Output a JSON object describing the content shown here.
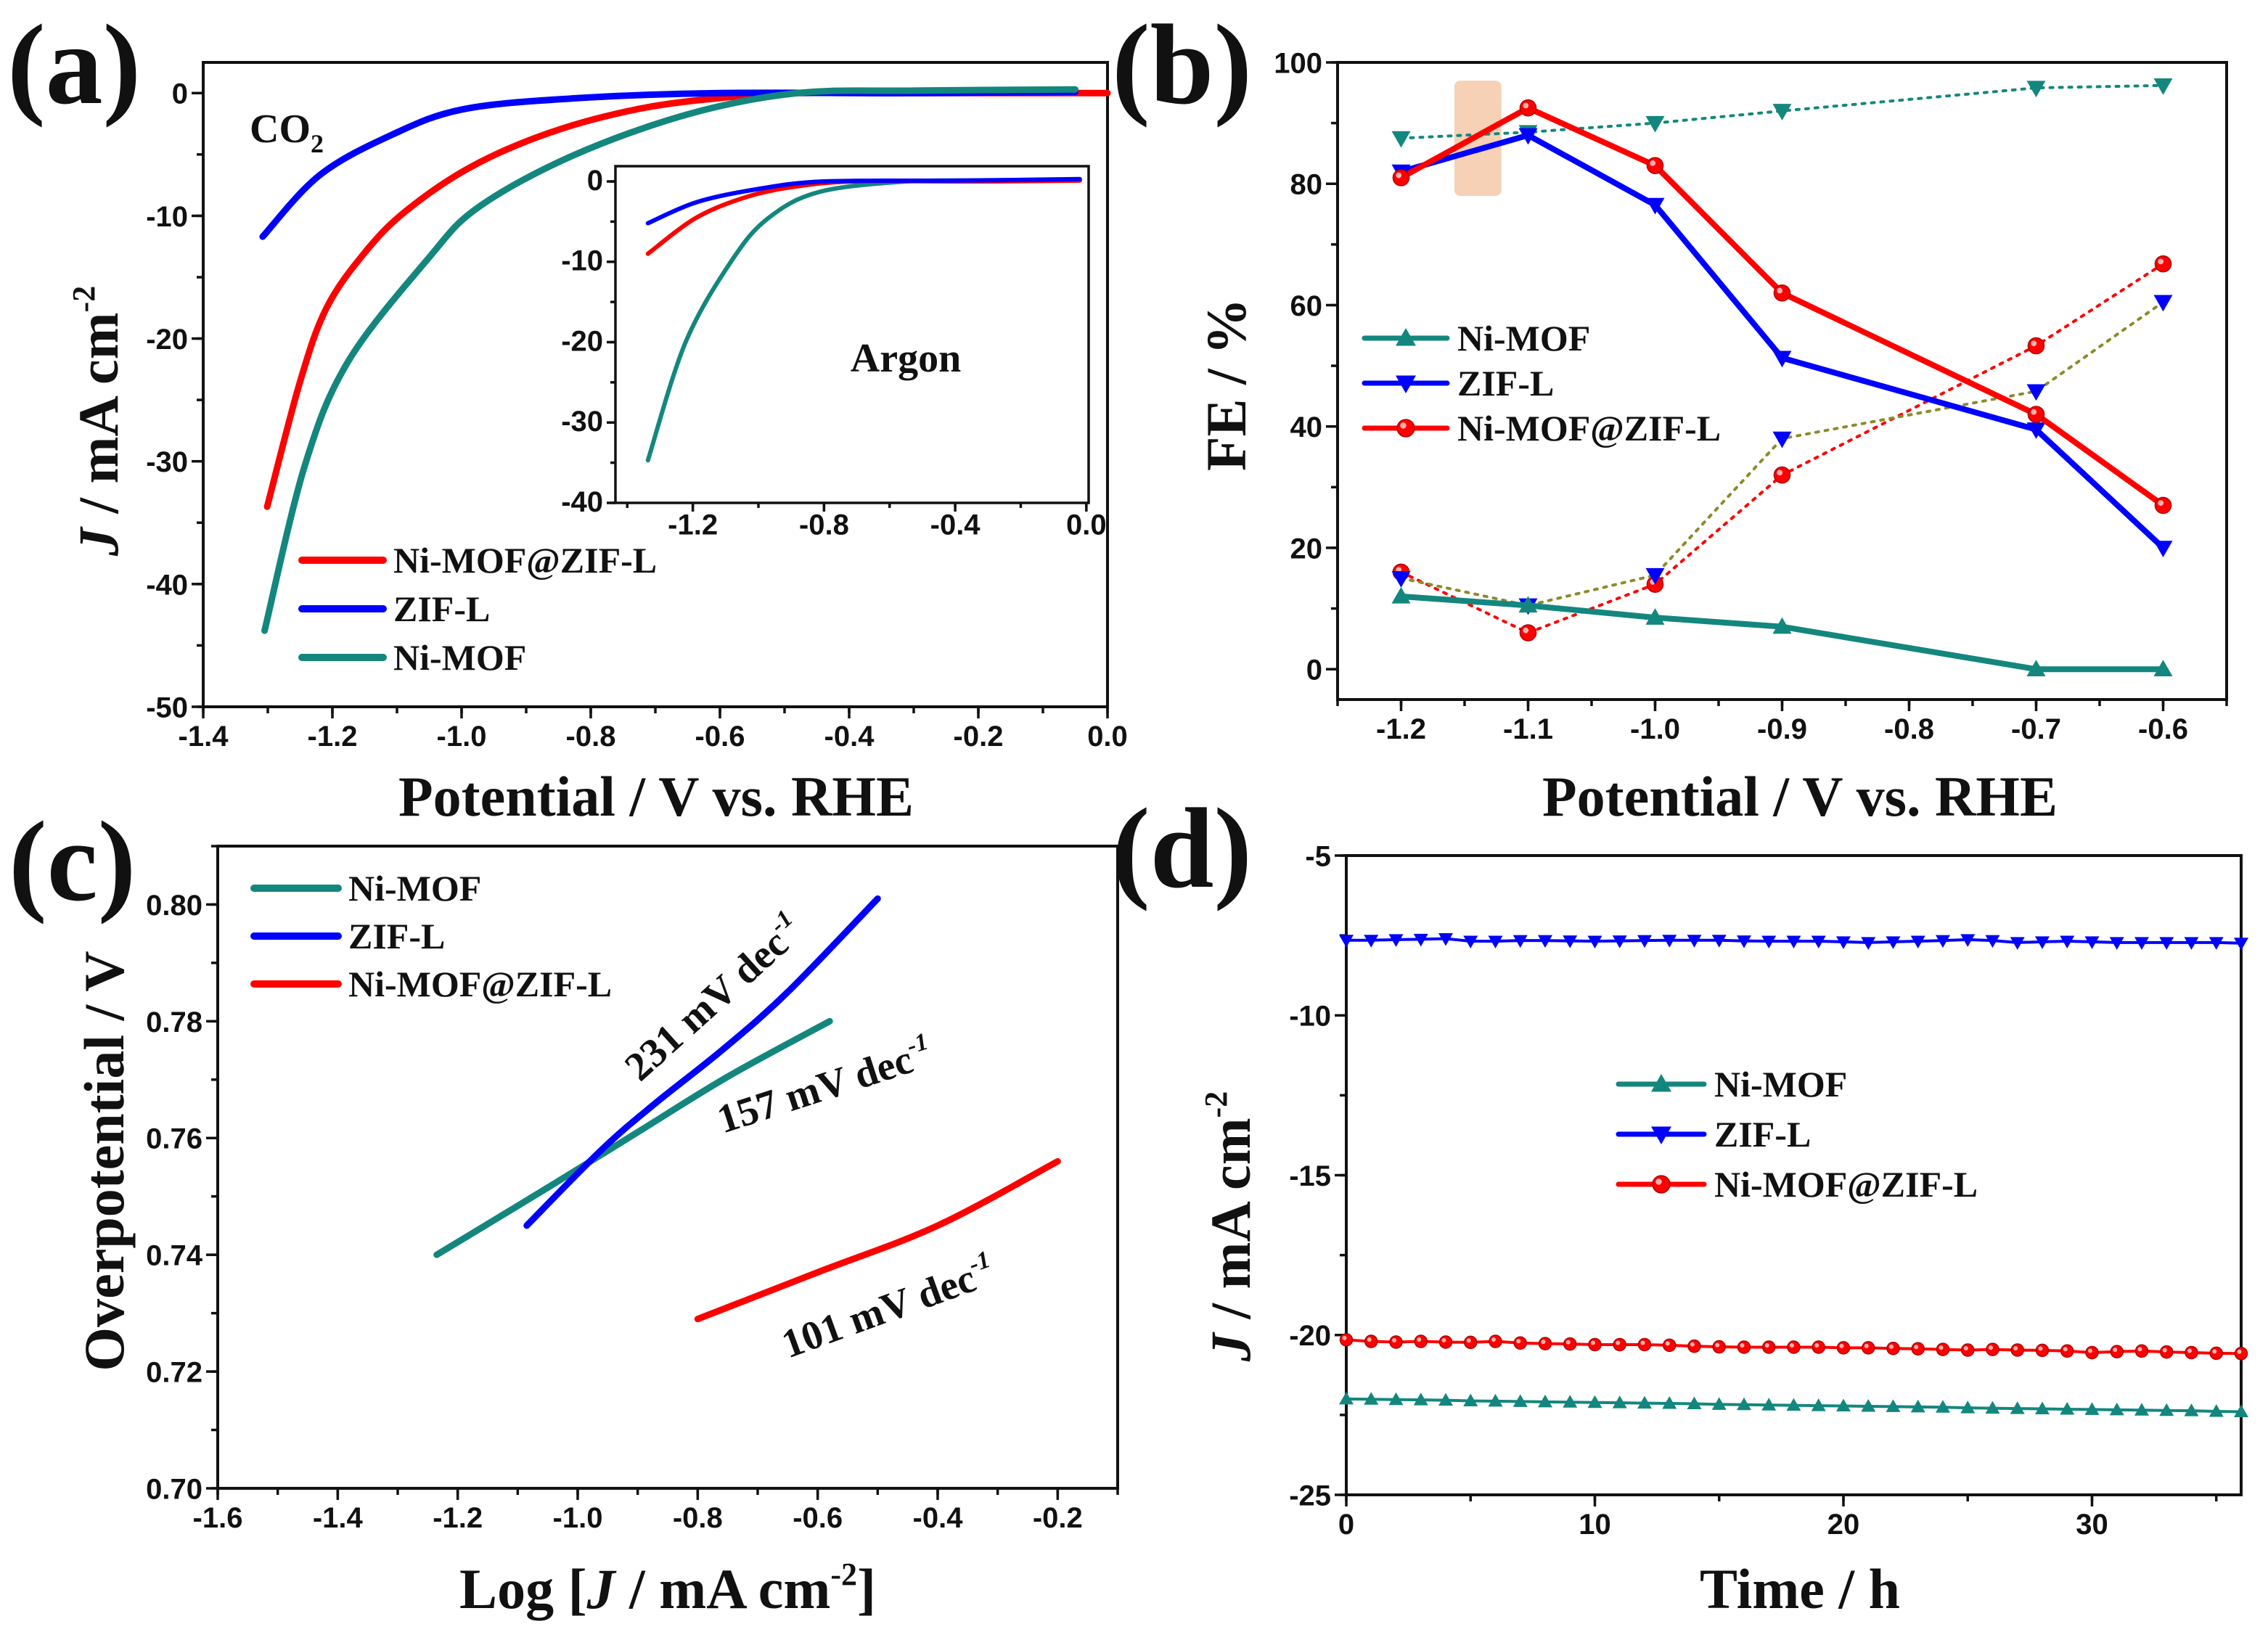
{
  "colors": {
    "red": "#ff0000",
    "blue": "#0000ff",
    "teal": "#13877e",
    "olive": "#8b8b2a",
    "highlight": "#f5c9a8"
  },
  "chart_data": [
    {
      "panel": "a",
      "label": "(a)",
      "type": "line",
      "xlabel": {
        "text": "Potential / V vs. RHE"
      },
      "ylabel": {
        "var": "J",
        "unit": " / mA cm",
        "exp": "-2"
      },
      "xlim": [
        -1.4,
        0.0
      ],
      "ylim": [
        -50,
        2.5
      ],
      "xticks": [
        "-1.4",
        "-1.2",
        "-1.0",
        "-0.8",
        "-0.6",
        "-0.4",
        "-0.2",
        "0.0"
      ],
      "yticks": [
        "0",
        "-10",
        "-20",
        "-30",
        "-40",
        "-50"
      ],
      "annotation": {
        "text": "CO",
        "sub": "2"
      },
      "legend": [
        {
          "name": "Ni-MOF@ZIF-L",
          "color": "red"
        },
        {
          "name": "ZIF-L",
          "color": "blue"
        },
        {
          "name": "Ni-MOF",
          "color": "teal"
        }
      ],
      "series": [
        {
          "name": "Ni-MOF@ZIF-L",
          "color": "red",
          "points": [
            [
              -1.301,
              -33.7
            ],
            [
              -1.25,
              -23.5
            ],
            [
              -1.209,
              -17.5
            ],
            [
              -1.15,
              -13
            ],
            [
              -1.086,
              -9.6
            ],
            [
              -0.985,
              -6.0
            ],
            [
              -0.862,
              -3.2
            ],
            [
              -0.727,
              -1.3
            ],
            [
              -0.6,
              -0.4
            ],
            [
              -0.48,
              0
            ],
            [
              -0.3,
              0
            ],
            [
              0.0,
              0
            ]
          ]
        },
        {
          "name": "ZIF-L",
          "color": "blue",
          "points": [
            [
              -1.308,
              -11.7
            ],
            [
              -1.22,
              -6.7
            ],
            [
              -1.108,
              -3.4
            ],
            [
              -0.996,
              -1.3
            ],
            [
              -0.817,
              -0.4
            ],
            [
              -0.6,
              0
            ],
            [
              -0.3,
              0
            ],
            [
              -0.05,
              0.1
            ]
          ]
        },
        {
          "name": "Ni-MOF",
          "color": "teal",
          "points": [
            [
              -1.305,
              -43.8
            ],
            [
              -1.243,
              -30.4
            ],
            [
              -1.176,
              -21.9
            ],
            [
              -1.052,
              -13.5
            ],
            [
              -0.974,
              -9.3
            ],
            [
              -0.828,
              -5.1
            ],
            [
              -0.648,
              -1.7
            ],
            [
              -0.48,
              0
            ],
            [
              -0.3,
              0.2
            ],
            [
              -0.05,
              0.3
            ]
          ]
        }
      ],
      "inset": {
        "annotation": "Argon",
        "xlim": [
          -1.436,
          0.007
        ],
        "ylim": [
          -40,
          1.9
        ],
        "xticks": [
          "-1.2",
          "-0.8",
          "-0.4",
          "0.0"
        ],
        "yticks": [
          "0",
          "-10",
          "-20",
          "-30",
          "-40"
        ],
        "series": [
          {
            "name": "Ni-MOF",
            "color": "teal",
            "points": [
              [
                -1.337,
                -34.7
              ],
              [
                -1.222,
                -20
              ],
              [
                -1.079,
                -9.7
              ],
              [
                -0.968,
                -4.5
              ],
              [
                -0.814,
                -1.3
              ],
              [
                -0.549,
                0
              ],
              [
                -0.3,
                0.1
              ],
              [
                -0.02,
                0.2
              ]
            ]
          },
          {
            "name": "Ni-MOF@ZIF-L",
            "color": "red",
            "points": [
              [
                -1.337,
                -9.0
              ],
              [
                -1.189,
                -4.5
              ],
              [
                -1.034,
                -1.9
              ],
              [
                -0.88,
                -0.6
              ],
              [
                -0.7,
                0
              ],
              [
                -0.3,
                0
              ],
              [
                -0.02,
                0.1
              ]
            ]
          },
          {
            "name": "ZIF-L",
            "color": "blue",
            "points": [
              [
                -1.337,
                -5.2
              ],
              [
                -1.19,
                -2.6
              ],
              [
                -1.01,
                -1.0
              ],
              [
                -0.8,
                0
              ],
              [
                -0.4,
                0.1
              ],
              [
                -0.02,
                0.3
              ]
            ]
          }
        ]
      }
    },
    {
      "panel": "b",
      "label": "(b)",
      "type": "line",
      "xlabel": {
        "text": "Potential / V vs. RHE"
      },
      "ylabel": {
        "text": "FE / %"
      },
      "xlim": [
        -1.25,
        -0.55
      ],
      "ylim": [
        -5,
        100
      ],
      "xticks": [
        "-1.2",
        "-1.1",
        "-1.0",
        "-0.9",
        "-0.8",
        "-0.7",
        "-0.6"
      ],
      "yticks": [
        "0",
        "20",
        "40",
        "60",
        "80",
        "100"
      ],
      "highlight_region": {
        "x": [
          -1.158,
          -1.121
        ],
        "y": [
          78,
          97
        ]
      },
      "x": [
        -1.2,
        -1.1,
        -1.0,
        -0.9,
        -0.7,
        -0.6
      ],
      "legend": [
        {
          "name": "Ni-MOF",
          "color": "teal",
          "marker": "triangle-up"
        },
        {
          "name": "ZIF-L",
          "color": "blue",
          "marker": "triangle-down"
        },
        {
          "name": "Ni-MOF@ZIF-L",
          "color": "red",
          "marker": "circle"
        }
      ],
      "series": [
        {
          "name": "Ni-MOF (dotted)",
          "color": "teal",
          "line_color": "teal",
          "style": "dotted",
          "marker": "triangle-down",
          "values": [
            87.5,
            88.5,
            90,
            92,
            95.8,
            96.2
          ]
        },
        {
          "name": "Ni-MOF@ZIF-L (dotted)",
          "color": "red",
          "line_color": "red",
          "style": "dotted",
          "marker": "circle",
          "values": [
            16,
            6,
            14,
            32,
            53.3,
            66.8
          ]
        },
        {
          "name": "ZIF-L (dotted)",
          "color": "blue",
          "line_color": "olive",
          "style": "dotted",
          "marker": "triangle-down",
          "values": [
            15,
            10.5,
            15.5,
            38,
            45.8,
            60.5
          ]
        },
        {
          "name": "Ni-MOF",
          "color": "teal",
          "line_color": "teal",
          "style": "solid",
          "marker": "triangle-up",
          "values": [
            12,
            10.5,
            8.5,
            7,
            0,
            0
          ]
        },
        {
          "name": "ZIF-L",
          "color": "blue",
          "line_color": "blue",
          "style": "solid",
          "marker": "triangle-down",
          "values": [
            82,
            88,
            76.5,
            51.3,
            39.5,
            20
          ]
        },
        {
          "name": "Ni-MOF@ZIF-L",
          "color": "red",
          "line_color": "red",
          "style": "solid",
          "marker": "circle",
          "values": [
            81,
            92.5,
            83,
            62,
            42,
            27
          ]
        }
      ]
    },
    {
      "panel": "c",
      "label": "(c)",
      "type": "line",
      "xlabel": {
        "pre": "Log [",
        "var": "J",
        "unit": " / mA cm",
        "exp": "-2",
        "post": "]"
      },
      "ylabel": {
        "text": "Overpotential / V"
      },
      "xlim": [
        -1.6,
        -0.1
      ],
      "ylim": [
        0.7,
        0.81
      ],
      "xticks": [
        "-1.6",
        "-1.4",
        "-1.2",
        "-1.0",
        "-0.8",
        "-0.6",
        "-0.4",
        "-0.2"
      ],
      "yticks": [
        "0.70",
        "0.72",
        "0.74",
        "0.76",
        "0.78",
        "0.80"
      ],
      "legend": [
        {
          "name": "Ni-MOF",
          "color": "teal"
        },
        {
          "name": "ZIF-L",
          "color": "blue"
        },
        {
          "name": "Ni-MOF@ZIF-L",
          "color": "red"
        }
      ],
      "annotations": [
        {
          "text": "231 mV dec",
          "exp": "-1",
          "series": "ZIF-L"
        },
        {
          "text": "157 mV dec",
          "exp": "-1",
          "series": "Ni-MOF"
        },
        {
          "text": "101 mV dec",
          "exp": "-1",
          "series": "Ni-MOF@ZIF-L"
        }
      ],
      "series": [
        {
          "name": "Ni-MOF",
          "color": "teal",
          "points": [
            [
              -1.235,
              0.74
            ],
            [
              -1.05,
              0.7515
            ],
            [
              -0.9,
              0.761
            ],
            [
              -0.75,
              0.7705
            ],
            [
              -0.58,
              0.78
            ]
          ]
        },
        {
          "name": "ZIF-L",
          "color": "blue",
          "points": [
            [
              -1.085,
              0.745
            ],
            [
              -0.96,
              0.758
            ],
            [
              -0.87,
              0.766
            ],
            [
              -0.76,
              0.775
            ],
            [
              -0.65,
              0.785
            ],
            [
              -0.5,
              0.801
            ]
          ]
        },
        {
          "name": "Ni-MOF@ZIF-L",
          "color": "red",
          "points": [
            [
              -0.8,
              0.729
            ],
            [
              -0.6,
              0.737
            ],
            [
              -0.4,
              0.745
            ],
            [
              -0.2,
              0.756
            ]
          ]
        }
      ]
    },
    {
      "panel": "d",
      "label": "(d)",
      "type": "line",
      "xlabel": {
        "text": "Time / h"
      },
      "ylabel": {
        "var": "J",
        "unit": " / mA cm",
        "exp": "-2"
      },
      "xlim": [
        0,
        36
      ],
      "ylim": [
        -25,
        -5
      ],
      "xticks": [
        "0",
        "10",
        "20",
        "30"
      ],
      "yticks": [
        "-5",
        "-10",
        "-15",
        "-20",
        "-25"
      ],
      "legend": [
        {
          "name": "Ni-MOF",
          "color": "teal",
          "marker": "triangle-up"
        },
        {
          "name": "ZIF-L",
          "color": "blue",
          "marker": "triangle-down"
        },
        {
          "name": "Ni-MOF@ZIF-L",
          "color": "red",
          "marker": "circle"
        }
      ],
      "x": [
        0,
        1,
        2,
        3,
        4,
        5,
        6,
        7,
        8,
        9,
        10,
        11,
        12,
        13,
        14,
        15,
        16,
        17,
        18,
        19,
        20,
        21,
        22,
        23,
        24,
        25,
        26,
        27,
        28,
        29,
        30,
        31,
        32,
        33,
        34,
        35,
        36
      ],
      "series": [
        {
          "name": "ZIF-L",
          "color": "blue",
          "marker": "triangle-down",
          "values": [
            -7.65,
            -7.65,
            -7.63,
            -7.62,
            -7.6,
            -7.68,
            -7.68,
            -7.66,
            -7.66,
            -7.67,
            -7.68,
            -7.67,
            -7.66,
            -7.65,
            -7.65,
            -7.65,
            -7.67,
            -7.68,
            -7.68,
            -7.68,
            -7.7,
            -7.72,
            -7.7,
            -7.68,
            -7.66,
            -7.63,
            -7.66,
            -7.72,
            -7.7,
            -7.68,
            -7.7,
            -7.72,
            -7.72,
            -7.72,
            -7.72,
            -7.72,
            -7.74
          ]
        },
        {
          "name": "Ni-MOF@ZIF-L",
          "color": "red",
          "marker": "circle",
          "values": [
            -20.15,
            -20.2,
            -20.22,
            -20.2,
            -20.22,
            -20.23,
            -20.2,
            -20.25,
            -20.27,
            -20.28,
            -20.3,
            -20.3,
            -20.3,
            -20.32,
            -20.35,
            -20.37,
            -20.38,
            -20.38,
            -20.38,
            -20.38,
            -20.4,
            -20.4,
            -20.42,
            -20.43,
            -20.45,
            -20.47,
            -20.45,
            -20.47,
            -20.48,
            -20.5,
            -20.55,
            -20.52,
            -20.5,
            -20.53,
            -20.55,
            -20.57,
            -20.58
          ]
        },
        {
          "name": "Ni-MOF",
          "color": "teal",
          "marker": "triangle-up",
          "values": [
            -22.0,
            -22.01,
            -22.02,
            -22.03,
            -22.04,
            -22.06,
            -22.07,
            -22.08,
            -22.09,
            -22.1,
            -22.11,
            -22.12,
            -22.13,
            -22.14,
            -22.15,
            -22.17,
            -22.18,
            -22.19,
            -22.2,
            -22.21,
            -22.22,
            -22.23,
            -22.24,
            -22.25,
            -22.26,
            -22.28,
            -22.29,
            -22.3,
            -22.31,
            -22.32,
            -22.33,
            -22.34,
            -22.35,
            -22.36,
            -22.37,
            -22.39,
            -22.4
          ]
        }
      ]
    }
  ]
}
